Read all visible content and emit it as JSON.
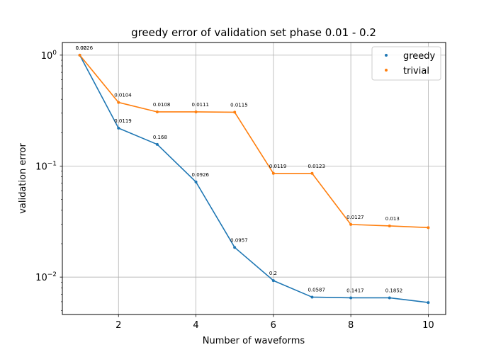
{
  "chart_data": {
    "type": "line",
    "title": "greedy error of validation set phase 0.01 - 0.2",
    "xlabel": "Number of waveforms",
    "ylabel": "validation error",
    "yscale": "log",
    "xlim": [
      0.55,
      10.45
    ],
    "ylim": [
      0.0046,
      1.3
    ],
    "grid": true,
    "legend_position": "top-right",
    "x": [
      1,
      2,
      3,
      4,
      5,
      6,
      7,
      8,
      9,
      10
    ],
    "x_ticks": [
      2,
      4,
      6,
      8,
      10
    ],
    "y_ticks": [
      {
        "value": 1,
        "label": "10",
        "exp": "0"
      },
      {
        "value": 0.1,
        "label": "10",
        "exp": "−1"
      },
      {
        "value": 0.01,
        "label": "10",
        "exp": "−2"
      }
    ],
    "series": [
      {
        "name": "greedy",
        "color": "#1f77b4",
        "values": [
          1.0,
          0.22,
          0.157,
          0.072,
          0.0185,
          0.0093,
          0.0066,
          0.0065,
          0.0065,
          0.0059
        ],
        "labels": [
          "0.02",
          "0.0119",
          "0.168",
          "0.0926",
          "0.0957",
          "0.2",
          "0.0587",
          "0.1417",
          "0.1852",
          ""
        ]
      },
      {
        "name": "trivial",
        "color": "#ff7f0e",
        "values": [
          1.0,
          0.375,
          0.308,
          0.308,
          0.306,
          0.086,
          0.086,
          0.0298,
          0.0289,
          0.0279
        ],
        "labels": [
          "0.0026",
          "0.0104",
          "0.0108",
          "0.0111",
          "0.0115",
          "0.0119",
          "0.0123",
          "0.0127",
          "0.013",
          ""
        ]
      }
    ]
  }
}
